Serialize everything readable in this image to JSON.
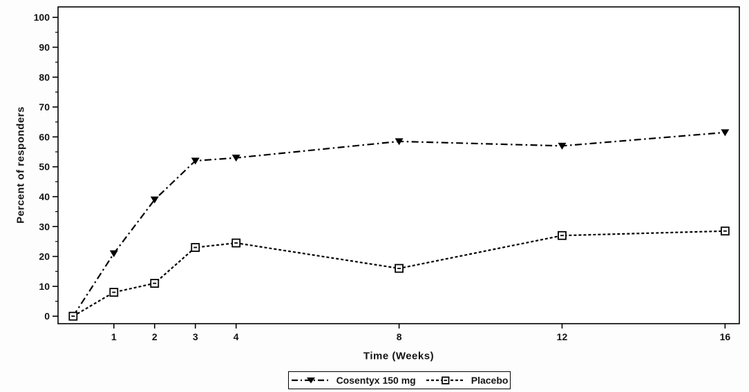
{
  "figure": {
    "colors": {
      "line": "#000000",
      "frame": "#000000",
      "background": "#ffffff",
      "text": "#141414"
    }
  },
  "chart_data": {
    "type": "line",
    "title": "",
    "xlabel": "Time (Weeks)",
    "ylabel": "Percent of responders",
    "x": [
      0,
      1,
      2,
      3,
      4,
      8,
      12,
      16
    ],
    "series": [
      {
        "name": "Cosentyx 150 mg",
        "line_style": "dash-dot",
        "marker": "filled-triangle-down",
        "values": [
          0,
          21,
          39,
          52,
          53,
          58.5,
          57,
          61.5
        ]
      },
      {
        "name": "Placebo",
        "line_style": "dotted",
        "marker": "open-square",
        "values": [
          0,
          8,
          11,
          23,
          24.5,
          16,
          27,
          28.5
        ]
      }
    ],
    "x_ticks": [
      1,
      2,
      3,
      4,
      8,
      12,
      16
    ],
    "y_ticks_major": [
      0,
      10,
      20,
      30,
      40,
      50,
      60,
      70,
      80,
      90,
      100
    ],
    "y_minor_interval": 5,
    "xlim": [
      -0.37,
      16.35
    ],
    "ylim": [
      -2.5,
      103.5
    ],
    "grid": false,
    "legend_position": "bottom-center"
  }
}
